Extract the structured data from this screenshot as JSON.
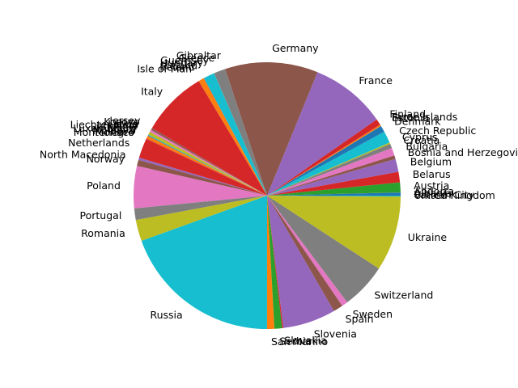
{
  "chart_data": {
    "type": "pie",
    "title": "",
    "start_angle_deg": 0,
    "direction": "counterclockwise",
    "slices": [
      {
        "label": "Albania",
        "value": 2.8,
        "color": "#1f77b4"
      },
      {
        "label": "Andorra",
        "value": 0.08,
        "color": "#ff7f0e"
      },
      {
        "label": "Austria",
        "value": 8.9,
        "color": "#2ca02c"
      },
      {
        "label": "Belarus",
        "value": 9.4,
        "color": "#d62728"
      },
      {
        "label": "Belgium",
        "value": 11.6,
        "color": "#9467bd"
      },
      {
        "label": "Bosnia and Herzegovina",
        "value": 3.3,
        "color": "#8c564b"
      },
      {
        "label": "Bulgaria",
        "value": 6.9,
        "color": "#e377c2"
      },
      {
        "label": "Croatia",
        "value": 4.0,
        "color": "#7f7f7f"
      },
      {
        "label": "Cyprus",
        "value": 1.2,
        "color": "#bcbd22"
      },
      {
        "label": "Czech Republic",
        "value": 10.7,
        "color": "#17becf"
      },
      {
        "label": "Denmark",
        "value": 5.8,
        "color": "#1f77b4"
      },
      {
        "label": "Estonia",
        "value": 1.3,
        "color": "#ff7f0e"
      },
      {
        "label": "Faroe Islands",
        "value": 0.05,
        "color": "#2ca02c"
      },
      {
        "label": "Finland",
        "value": 5.5,
        "color": "#d62728"
      },
      {
        "label": "France",
        "value": 67.8,
        "color": "#9467bd"
      },
      {
        "label": "Germany",
        "value": 83.2,
        "color": "#8c564b"
      },
      {
        "label": "Gibraltar",
        "value": 0.03,
        "color": "#e377c2"
      },
      {
        "label": "Greece",
        "value": 10.4,
        "color": "#7f7f7f"
      },
      {
        "label": "Guernsey",
        "value": 0.06,
        "color": "#bcbd22"
      },
      {
        "label": "Hungary",
        "value": 9.7,
        "color": "#17becf"
      },
      {
        "label": "Iceland",
        "value": 0.37,
        "color": "#1f77b4"
      },
      {
        "label": "Ireland",
        "value": 5.0,
        "color": "#ff7f0e"
      },
      {
        "label": "Isle of Man",
        "value": 0.08,
        "color": "#2ca02c"
      },
      {
        "label": "Italy",
        "value": 59.1,
        "color": "#d62728"
      },
      {
        "label": "Jersey",
        "value": 0.1,
        "color": "#9467bd"
      },
      {
        "label": "Kosovo",
        "value": 1.8,
        "color": "#8c564b"
      },
      {
        "label": "Latvia",
        "value": 1.9,
        "color": "#e377c2"
      },
      {
        "label": "Liechtenstein",
        "value": 0.04,
        "color": "#7f7f7f"
      },
      {
        "label": "Lithuania",
        "value": 2.8,
        "color": "#bcbd22"
      },
      {
        "label": "Luxembourg",
        "value": 0.63,
        "color": "#17becf"
      },
      {
        "label": "Malta",
        "value": 0.52,
        "color": "#1f77b4"
      },
      {
        "label": "Moldova",
        "value": 2.6,
        "color": "#ff7f0e"
      },
      {
        "label": "Monaco",
        "value": 0.04,
        "color": "#2ca02c"
      },
      {
        "label": "Montenegro",
        "value": 0.62,
        "color": "#d62728"
      },
      {
        "label": "Netherlands",
        "value": 17.5,
        "color": "#d62728"
      },
      {
        "label": "North Macedonia",
        "value": 2.1,
        "color": "#9467bd"
      },
      {
        "label": "Norway",
        "value": 5.4,
        "color": "#8c564b"
      },
      {
        "label": "Poland",
        "value": 37.8,
        "color": "#e377c2"
      },
      {
        "label": "Portugal",
        "value": 10.3,
        "color": "#7f7f7f"
      },
      {
        "label": "Romania",
        "value": 19.1,
        "color": "#bcbd22"
      },
      {
        "label": "Russia",
        "value": 144.1,
        "color": "#17becf"
      },
      {
        "label": "San Marino",
        "value": 6.5,
        "color": "#ff7f0e"
      },
      {
        "label": "Serbia",
        "value": 6.9,
        "color": "#2ca02c"
      },
      {
        "label": "Slovakia",
        "value": 1.0,
        "color": "#d62728"
      },
      {
        "label": "Slovenia",
        "value": 47.4,
        "color": "#9467bd"
      },
      {
        "label": "Spain",
        "value": 8.6,
        "color": "#8c564b"
      },
      {
        "label": "Sweden",
        "value": 5.4,
        "color": "#e377c2"
      },
      {
        "label": "Switzerland",
        "value": 41.0,
        "color": "#7f7f7f"
      },
      {
        "label": "Ukraine",
        "value": 67.3,
        "color": "#bcbd22"
      },
      {
        "label": "United Kingdom",
        "value": 0.8,
        "color": "#17becf"
      },
      {
        "label": "Vatican City",
        "value": 0.01,
        "color": "#1f77b4"
      }
    ]
  }
}
